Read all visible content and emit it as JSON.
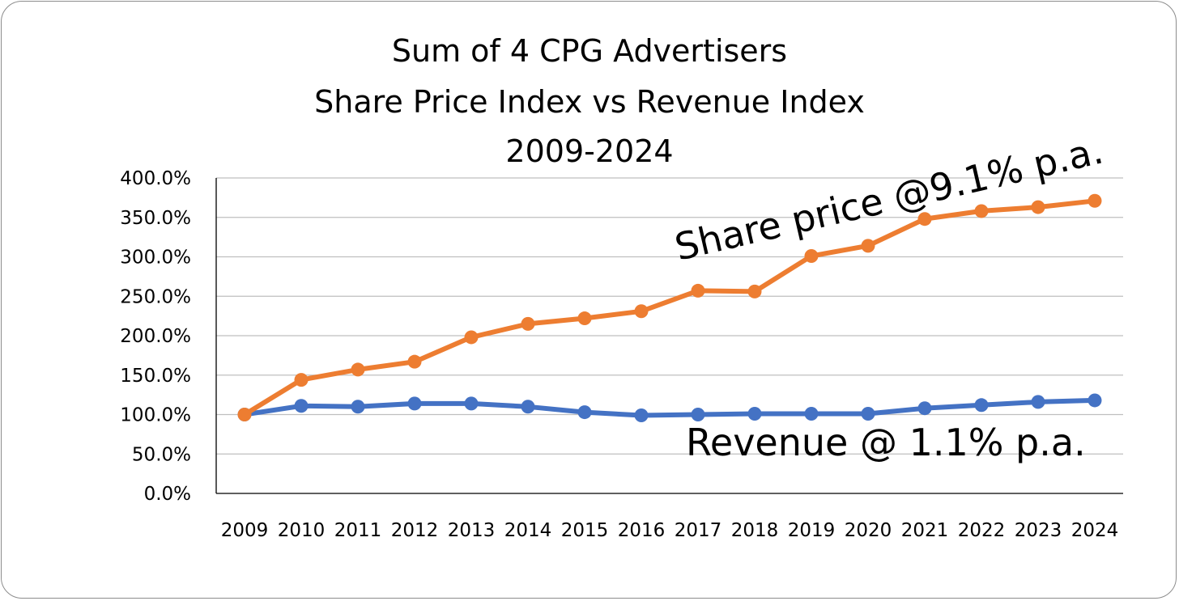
{
  "chart_data": {
    "type": "line",
    "title_lines": [
      "Sum of 4 CPG Advertisers",
      "Share Price Index vs Revenue Index",
      "2009-2024"
    ],
    "categories": [
      "2009",
      "2010",
      "2011",
      "2012",
      "2013",
      "2014",
      "2015",
      "2016",
      "2017",
      "2018",
      "2019",
      "2020",
      "2021",
      "2022",
      "2023",
      "2024"
    ],
    "y_ticks": [
      "0.0%",
      "50.0%",
      "100.0%",
      "150.0%",
      "200.0%",
      "250.0%",
      "300.0%",
      "350.0%",
      "400.0%"
    ],
    "ylim": [
      0,
      400
    ],
    "grid": true,
    "series": [
      {
        "key": "share-price",
        "color": "#ED7D31",
        "values": [
          100,
          144,
          157,
          167,
          198,
          215,
          222,
          231,
          257,
          256,
          301,
          314,
          348,
          358,
          363,
          371
        ]
      },
      {
        "key": "revenue",
        "color": "#4472C4",
        "values": [
          100,
          111,
          110,
          114,
          114,
          110,
          103,
          99,
          100,
          101,
          101,
          101,
          108,
          112,
          116,
          118
        ]
      }
    ],
    "annotations": {
      "share_price": "Share price @9.1% p.a.",
      "revenue": "Revenue @ 1.1% p.a."
    }
  }
}
